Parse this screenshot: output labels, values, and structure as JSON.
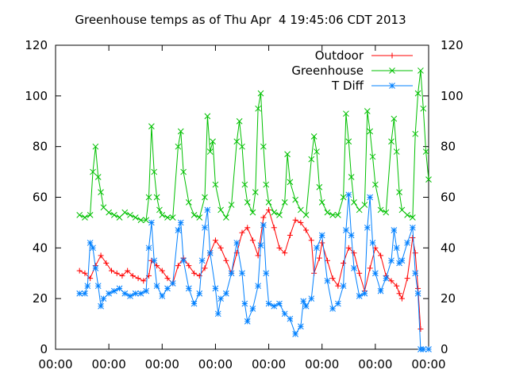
{
  "chart_data": {
    "type": "line",
    "title": "Greenhouse temps as of Thu Apr  4 19:45:06 CDT 2013",
    "xlabel": "",
    "ylabel": "",
    "ylim": [
      0,
      120
    ],
    "yticks": [
      0,
      20,
      40,
      60,
      80,
      100,
      120
    ],
    "y2ticks": [
      0,
      20,
      40,
      60,
      80,
      100,
      120
    ],
    "xlim": [
      0,
      7
    ],
    "x_tick_labels": [
      "00:00",
      "00:00",
      "00:00",
      "00:00",
      "00:00",
      "00:00",
      "00:00",
      "00:00"
    ],
    "legend_position": "top-right",
    "grid": false,
    "series": [
      {
        "name": "Outdoor",
        "color": "#ff0000",
        "marker": "plus",
        "points": [
          [
            0.45,
            31
          ],
          [
            0.55,
            30
          ],
          [
            0.65,
            28
          ],
          [
            0.75,
            33
          ],
          [
            0.85,
            37
          ],
          [
            0.95,
            34
          ],
          [
            1.05,
            31
          ],
          [
            1.15,
            30
          ],
          [
            1.25,
            29
          ],
          [
            1.35,
            31
          ],
          [
            1.45,
            29
          ],
          [
            1.55,
            28
          ],
          [
            1.65,
            27
          ],
          [
            1.75,
            29
          ],
          [
            1.8,
            35
          ],
          [
            1.9,
            33
          ],
          [
            2.0,
            31
          ],
          [
            2.1,
            28
          ],
          [
            2.2,
            26
          ],
          [
            2.3,
            33
          ],
          [
            2.4,
            36
          ],
          [
            2.5,
            33
          ],
          [
            2.6,
            30
          ],
          [
            2.7,
            29
          ],
          [
            2.8,
            32
          ],
          [
            2.9,
            38
          ],
          [
            3.0,
            43
          ],
          [
            3.1,
            40
          ],
          [
            3.2,
            35
          ],
          [
            3.3,
            30
          ],
          [
            3.4,
            38
          ],
          [
            3.5,
            46
          ],
          [
            3.6,
            48
          ],
          [
            3.7,
            43
          ],
          [
            3.8,
            37
          ],
          [
            3.9,
            52
          ],
          [
            4.0,
            55
          ],
          [
            4.1,
            48
          ],
          [
            4.2,
            40
          ],
          [
            4.3,
            38
          ],
          [
            4.4,
            45
          ],
          [
            4.5,
            51
          ],
          [
            4.6,
            50
          ],
          [
            4.7,
            47
          ],
          [
            4.8,
            43
          ],
          [
            4.85,
            30
          ],
          [
            4.95,
            36
          ],
          [
            5.0,
            42
          ],
          [
            5.1,
            35
          ],
          [
            5.2,
            28
          ],
          [
            5.3,
            25
          ],
          [
            5.4,
            34
          ],
          [
            5.5,
            40
          ],
          [
            5.6,
            38
          ],
          [
            5.7,
            30
          ],
          [
            5.8,
            23
          ],
          [
            5.9,
            32
          ],
          [
            6.0,
            40
          ],
          [
            6.1,
            37
          ],
          [
            6.2,
            29
          ],
          [
            6.3,
            27
          ],
          [
            6.4,
            25
          ],
          [
            6.45,
            22
          ],
          [
            6.5,
            20
          ],
          [
            6.6,
            28
          ],
          [
            6.7,
            44
          ],
          [
            6.75,
            38
          ],
          [
            6.8,
            24
          ],
          [
            6.85,
            8
          ]
        ]
      },
      {
        "name": "Greenhouse",
        "color": "#00c000",
        "marker": "cross",
        "points": [
          [
            0.45,
            53
          ],
          [
            0.55,
            52
          ],
          [
            0.65,
            53
          ],
          [
            0.7,
            70
          ],
          [
            0.75,
            80
          ],
          [
            0.8,
            68
          ],
          [
            0.85,
            62
          ],
          [
            0.9,
            56
          ],
          [
            1.0,
            54
          ],
          [
            1.1,
            53
          ],
          [
            1.2,
            52
          ],
          [
            1.3,
            54
          ],
          [
            1.4,
            53
          ],
          [
            1.5,
            52
          ],
          [
            1.6,
            51
          ],
          [
            1.7,
            51
          ],
          [
            1.75,
            60
          ],
          [
            1.8,
            88
          ],
          [
            1.85,
            70
          ],
          [
            1.9,
            60
          ],
          [
            1.95,
            55
          ],
          [
            2.0,
            53
          ],
          [
            2.1,
            52
          ],
          [
            2.2,
            52
          ],
          [
            2.3,
            80
          ],
          [
            2.35,
            86
          ],
          [
            2.4,
            70
          ],
          [
            2.5,
            58
          ],
          [
            2.6,
            53
          ],
          [
            2.7,
            52
          ],
          [
            2.8,
            60
          ],
          [
            2.85,
            92
          ],
          [
            2.9,
            78
          ],
          [
            2.95,
            82
          ],
          [
            3.0,
            65
          ],
          [
            3.1,
            55
          ],
          [
            3.2,
            52
          ],
          [
            3.3,
            57
          ],
          [
            3.4,
            82
          ],
          [
            3.45,
            90
          ],
          [
            3.5,
            80
          ],
          [
            3.55,
            65
          ],
          [
            3.6,
            58
          ],
          [
            3.7,
            54
          ],
          [
            3.75,
            62
          ],
          [
            3.8,
            95
          ],
          [
            3.85,
            101
          ],
          [
            3.9,
            80
          ],
          [
            3.95,
            65
          ],
          [
            4.0,
            58
          ],
          [
            4.1,
            54
          ],
          [
            4.2,
            53
          ],
          [
            4.3,
            58
          ],
          [
            4.35,
            77
          ],
          [
            4.4,
            66
          ],
          [
            4.5,
            59
          ],
          [
            4.6,
            55
          ],
          [
            4.7,
            53
          ],
          [
            4.8,
            75
          ],
          [
            4.85,
            84
          ],
          [
            4.9,
            78
          ],
          [
            4.95,
            64
          ],
          [
            5.0,
            58
          ],
          [
            5.1,
            54
          ],
          [
            5.2,
            53
          ],
          [
            5.3,
            53
          ],
          [
            5.4,
            60
          ],
          [
            5.45,
            93
          ],
          [
            5.5,
            82
          ],
          [
            5.55,
            68
          ],
          [
            5.6,
            58
          ],
          [
            5.7,
            55
          ],
          [
            5.8,
            57
          ],
          [
            5.85,
            94
          ],
          [
            5.9,
            86
          ],
          [
            5.95,
            76
          ],
          [
            6.0,
            65
          ],
          [
            6.1,
            55
          ],
          [
            6.2,
            54
          ],
          [
            6.3,
            82
          ],
          [
            6.35,
            91
          ],
          [
            6.4,
            78
          ],
          [
            6.45,
            62
          ],
          [
            6.5,
            55
          ],
          [
            6.6,
            53
          ],
          [
            6.7,
            52
          ],
          [
            6.75,
            85
          ],
          [
            6.8,
            101
          ],
          [
            6.85,
            110
          ],
          [
            6.9,
            95
          ],
          [
            6.95,
            78
          ],
          [
            7.0,
            67
          ]
        ]
      },
      {
        "name": "T Diff",
        "color": "#0080ff",
        "marker": "star",
        "points": [
          [
            0.45,
            22
          ],
          [
            0.55,
            22
          ],
          [
            0.6,
            25
          ],
          [
            0.65,
            42
          ],
          [
            0.7,
            40
          ],
          [
            0.75,
            32
          ],
          [
            0.8,
            25
          ],
          [
            0.85,
            17
          ],
          [
            0.9,
            20
          ],
          [
            1.0,
            22
          ],
          [
            1.1,
            23
          ],
          [
            1.2,
            24
          ],
          [
            1.3,
            22
          ],
          [
            1.4,
            21
          ],
          [
            1.5,
            22
          ],
          [
            1.6,
            22
          ],
          [
            1.7,
            23
          ],
          [
            1.75,
            40
          ],
          [
            1.8,
            50
          ],
          [
            1.85,
            35
          ],
          [
            1.9,
            25
          ],
          [
            2.0,
            21
          ],
          [
            2.1,
            24
          ],
          [
            2.2,
            26
          ],
          [
            2.3,
            47
          ],
          [
            2.35,
            50
          ],
          [
            2.4,
            35
          ],
          [
            2.5,
            24
          ],
          [
            2.6,
            18
          ],
          [
            2.7,
            22
          ],
          [
            2.75,
            35
          ],
          [
            2.8,
            48
          ],
          [
            2.85,
            55
          ],
          [
            2.9,
            38
          ],
          [
            3.0,
            24
          ],
          [
            3.05,
            14
          ],
          [
            3.1,
            20
          ],
          [
            3.2,
            22
          ],
          [
            3.3,
            30
          ],
          [
            3.4,
            42
          ],
          [
            3.5,
            30
          ],
          [
            3.55,
            18
          ],
          [
            3.6,
            11
          ],
          [
            3.7,
            16
          ],
          [
            3.8,
            25
          ],
          [
            3.85,
            41
          ],
          [
            3.9,
            49
          ],
          [
            3.95,
            30
          ],
          [
            4.0,
            18
          ],
          [
            4.1,
            17
          ],
          [
            4.2,
            18
          ],
          [
            4.3,
            14
          ],
          [
            4.4,
            12
          ],
          [
            4.5,
            6
          ],
          [
            4.6,
            9
          ],
          [
            4.65,
            19
          ],
          [
            4.7,
            17
          ],
          [
            4.8,
            20
          ],
          [
            4.9,
            40
          ],
          [
            5.0,
            45
          ],
          [
            5.1,
            27
          ],
          [
            5.2,
            16
          ],
          [
            5.3,
            18
          ],
          [
            5.4,
            25
          ],
          [
            5.45,
            47
          ],
          [
            5.5,
            61
          ],
          [
            5.55,
            45
          ],
          [
            5.6,
            32
          ],
          [
            5.7,
            21
          ],
          [
            5.8,
            22
          ],
          [
            5.85,
            48
          ],
          [
            5.9,
            60
          ],
          [
            5.95,
            42
          ],
          [
            6.0,
            30
          ],
          [
            6.1,
            23
          ],
          [
            6.2,
            28
          ],
          [
            6.3,
            35
          ],
          [
            6.35,
            47
          ],
          [
            6.4,
            40
          ],
          [
            6.45,
            34
          ],
          [
            6.5,
            35
          ],
          [
            6.6,
            42
          ],
          [
            6.7,
            48
          ],
          [
            6.75,
            30
          ],
          [
            6.8,
            22
          ],
          [
            6.85,
            0
          ],
          [
            6.9,
            0
          ],
          [
            7.0,
            0
          ]
        ]
      }
    ]
  }
}
